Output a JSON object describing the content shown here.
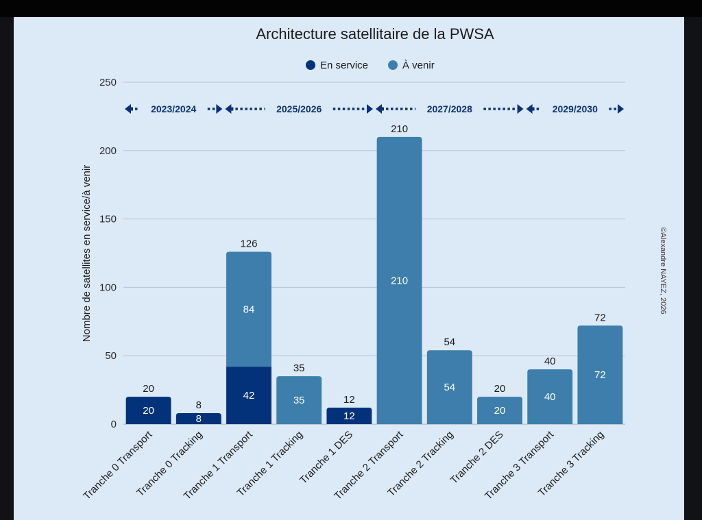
{
  "chart_data": {
    "type": "bar",
    "stacked": true,
    "title": "Architecture satellitaire de la PWSA",
    "xlabel": "",
    "ylabel": "Nombre de satellites en service/à venir",
    "ylim": [
      0,
      250
    ],
    "yticks": [
      0,
      50,
      100,
      150,
      200,
      250
    ],
    "grid": true,
    "legend_position": "top-center",
    "categories": [
      "Tranche 0 Transport",
      "Tranche 0 Tracking",
      "Tranche 1 Transport",
      "Tranche 1 Tracking",
      "Tranche 1 DES",
      "Tranche 2 Transport",
      "Tranche 2 Tracking",
      "Tranche 2 DES",
      "Tranche 3 Transport",
      "Tranche 3 Tracking"
    ],
    "series": [
      {
        "name": "En service",
        "color": "#04327a",
        "values": [
          20,
          8,
          42,
          0,
          12,
          0,
          0,
          0,
          0,
          0
        ]
      },
      {
        "name": "À venir",
        "color": "#3d7eac",
        "values": [
          0,
          0,
          84,
          35,
          0,
          210,
          54,
          20,
          40,
          72
        ]
      }
    ],
    "totals": [
      20,
      8,
      126,
      35,
      12,
      210,
      54,
      20,
      40,
      72
    ],
    "periods": [
      {
        "label": "2023/2024",
        "from_category": 0,
        "to_category": 1
      },
      {
        "label": "2025/2026",
        "from_category": 2,
        "to_category": 4
      },
      {
        "label": "2027/2028",
        "from_category": 5,
        "to_category": 7
      },
      {
        "label": "2029/2030",
        "from_category": 8,
        "to_category": 9
      }
    ],
    "annotations": [
      "©Alexandre NAYEZ, 2026"
    ]
  },
  "colors": {
    "background": "#dce9f6",
    "period_arrow": "#0b3276",
    "grid": "#b6c4d3"
  }
}
